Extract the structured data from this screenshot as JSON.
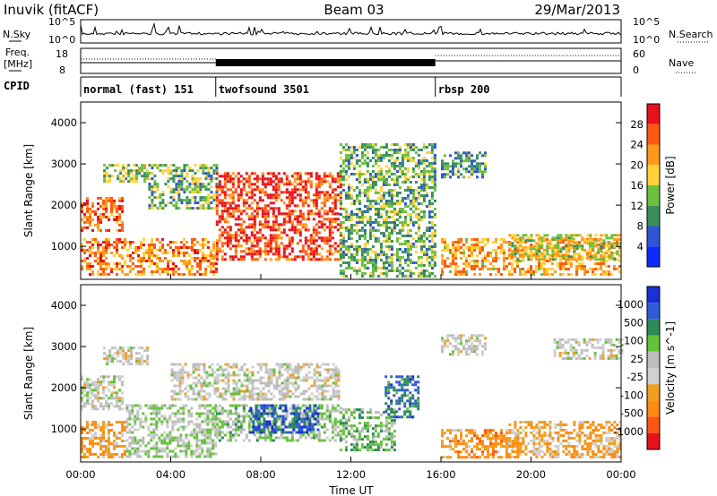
{
  "header": {
    "station": "Inuvik (fitACF)",
    "beam": "Beam 03",
    "date": "29/Mar/2013"
  },
  "top_panel": {
    "left_label": "N.Sky",
    "right_label": "N.Search",
    "left_ticks": [
      "10^5",
      "10^0"
    ],
    "right_ticks": [
      "10^5",
      "10^0"
    ]
  },
  "freq_panel": {
    "left_label_line1": "Freq.",
    "left_label_line2": "[MHz]",
    "left_ticks": [
      "18",
      "8"
    ],
    "right_ticks": [
      "60",
      "0"
    ],
    "right_label": "Nave"
  },
  "cpid": {
    "label": "CPID",
    "segments": [
      {
        "name": "normal (fast) 151",
        "start_h": 0,
        "end_h": 6
      },
      {
        "name": "twofsound 3501",
        "start_h": 6,
        "end_h": 15.75
      },
      {
        "name": "rbsp 200",
        "start_h": 15.75,
        "end_h": 24
      }
    ]
  },
  "x_axis": {
    "label": "Time UT",
    "ticks": [
      "00:00",
      "04:00",
      "08:00",
      "12:00",
      "16:00",
      "20:00",
      "00:00"
    ]
  },
  "colors": {
    "power": [
      "#0b2bff",
      "#2f55d4",
      "#3a8f5e",
      "#6fbf3e",
      "#ffd23a",
      "#ff9a1a",
      "#ff5a10",
      "#e8101a"
    ],
    "velocity": [
      "#1a2fd6",
      "#2f5ad8",
      "#2e8a57",
      "#64c23a",
      "#bdbdbd",
      "#cfcfcf",
      "#f0a020",
      "#ff8a10",
      "#ff5512",
      "#e8101a"
    ]
  },
  "chart_data": [
    {
      "type": "heatmap",
      "title": "",
      "ylabel": "Slant Range [km]",
      "xlabel": "Time UT",
      "xlim": [
        0,
        24
      ],
      "ylim": [
        200,
        4500
      ],
      "yticks": [
        1000,
        2000,
        3000,
        4000
      ],
      "colorbar": {
        "label": "Power [dB]",
        "ticks": [
          "28",
          "24",
          "20",
          "16",
          "12",
          "8",
          "4"
        ],
        "range": [
          0,
          30
        ]
      },
      "regions": [
        {
          "t0": 0.0,
          "t1": 1.8,
          "r0": 1400,
          "r1": 2200,
          "value": 24
        },
        {
          "t0": 0.0,
          "t1": 6.0,
          "r0": 300,
          "r1": 1200,
          "value": 22
        },
        {
          "t0": 1.0,
          "t1": 3.0,
          "r0": 2600,
          "r1": 3000,
          "value": 14
        },
        {
          "t0": 3.0,
          "t1": 6.0,
          "r0": 1900,
          "r1": 3000,
          "value": 12
        },
        {
          "t0": 6.0,
          "t1": 11.5,
          "r0": 700,
          "r1": 2800,
          "value": 26
        },
        {
          "t0": 11.5,
          "t1": 15.7,
          "r0": 300,
          "r1": 3500,
          "value": 12
        },
        {
          "t0": 16.0,
          "t1": 18.0,
          "r0": 2700,
          "r1": 3300,
          "value": 10
        },
        {
          "t0": 16.0,
          "t1": 24.0,
          "r0": 300,
          "r1": 1200,
          "value": 20
        },
        {
          "t0": 19.0,
          "t1": 24.0,
          "r0": 700,
          "r1": 1300,
          "value": 16
        }
      ]
    },
    {
      "type": "heatmap",
      "title": "",
      "ylabel": "Slant Range [km]",
      "xlabel": "Time UT",
      "xlim": [
        0,
        24
      ],
      "ylim": [
        200,
        4500
      ],
      "yticks": [
        1000,
        2000,
        3000,
        4000
      ],
      "colorbar": {
        "label": "Velocity [m s^-1]",
        "ticks": [
          "1000",
          "500",
          "100",
          "25",
          "-25",
          "-100",
          "-500",
          "-1000"
        ],
        "range": [
          -1000,
          1000
        ]
      },
      "regions": [
        {
          "t0": 0.0,
          "t1": 1.8,
          "r0": 1500,
          "r1": 2300,
          "value": 0
        },
        {
          "t0": 0.0,
          "t1": 2.0,
          "r0": 300,
          "r1": 1200,
          "value": -300
        },
        {
          "t0": 1.0,
          "t1": 3.0,
          "r0": 2600,
          "r1": 3000,
          "value": 0
        },
        {
          "t0": 2.0,
          "t1": 6.0,
          "r0": 300,
          "r1": 1600,
          "value": 150
        },
        {
          "t0": 4.0,
          "t1": 11.5,
          "r0": 1700,
          "r1": 2600,
          "value": 0
        },
        {
          "t0": 6.0,
          "t1": 11.5,
          "r0": 700,
          "r1": 1600,
          "value": 200
        },
        {
          "t0": 7.5,
          "t1": 10.5,
          "r0": 900,
          "r1": 1600,
          "value": 700
        },
        {
          "t0": 11.5,
          "t1": 14.0,
          "r0": 500,
          "r1": 1500,
          "value": 300
        },
        {
          "t0": 13.5,
          "t1": 15.0,
          "r0": 1300,
          "r1": 2300,
          "value": 600
        },
        {
          "t0": 16.0,
          "t1": 18.0,
          "r0": 2800,
          "r1": 3300,
          "value": 0
        },
        {
          "t0": 16.0,
          "t1": 19.0,
          "r0": 300,
          "r1": 1000,
          "value": -400
        },
        {
          "t0": 19.0,
          "t1": 24.0,
          "r0": 300,
          "r1": 1200,
          "value": -300
        },
        {
          "t0": 21.0,
          "t1": 24.0,
          "r0": 2700,
          "r1": 3200,
          "value": 0
        }
      ]
    }
  ]
}
